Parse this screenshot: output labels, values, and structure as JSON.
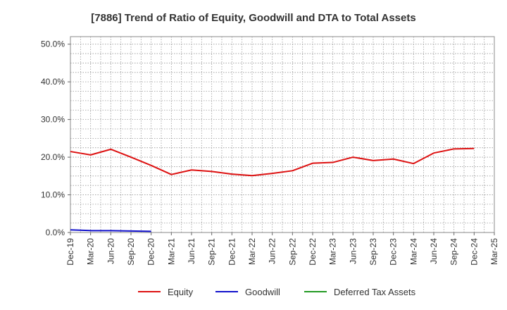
{
  "chart_data": {
    "type": "line",
    "title": "[7886]  Trend of Ratio of Equity, Goodwill and DTA to Total Assets",
    "xlabel": "",
    "ylabel": "",
    "ylim": [
      0,
      52
    ],
    "y_ticks": [
      0,
      10,
      20,
      30,
      40,
      50
    ],
    "y_tick_labels": [
      "0.0%",
      "10.0%",
      "20.0%",
      "30.0%",
      "40.0%",
      "50.0%"
    ],
    "x_tick_labels": [
      "Dec-19",
      "Mar-20",
      "Jun-20",
      "Sep-20",
      "Dec-20",
      "Mar-21",
      "Jun-21",
      "Sep-21",
      "Dec-21",
      "Mar-22",
      "Jun-22",
      "Sep-22",
      "Dec-22",
      "Mar-23",
      "Jun-23",
      "Sep-23",
      "Dec-23",
      "Mar-24",
      "Jun-24",
      "Sep-24",
      "Dec-24",
      "Mar-25"
    ],
    "grid": true,
    "legend_position": "bottom",
    "series": [
      {
        "name": "Equity",
        "color": "#dd1111",
        "values": [
          21.5,
          20.6,
          22.1,
          20.0,
          17.8,
          15.4,
          16.6,
          16.2,
          15.5,
          15.1,
          15.7,
          16.4,
          18.4,
          18.6,
          20.0,
          19.1,
          19.5,
          18.3,
          21.1,
          22.2,
          22.3,
          null
        ]
      },
      {
        "name": "Goodwill",
        "color": "#1111cc",
        "values": [
          0.7,
          0.5,
          0.5,
          0.4,
          0.3,
          null,
          null,
          null,
          null,
          null,
          null,
          null,
          null,
          null,
          null,
          null,
          null,
          null,
          null,
          null,
          null,
          null
        ]
      },
      {
        "name": "Deferred Tax Assets",
        "color": "#229922",
        "values": [
          null,
          null,
          null,
          null,
          null,
          null,
          null,
          null,
          null,
          null,
          null,
          null,
          null,
          null,
          null,
          null,
          null,
          null,
          null,
          null,
          null,
          null
        ]
      }
    ]
  }
}
